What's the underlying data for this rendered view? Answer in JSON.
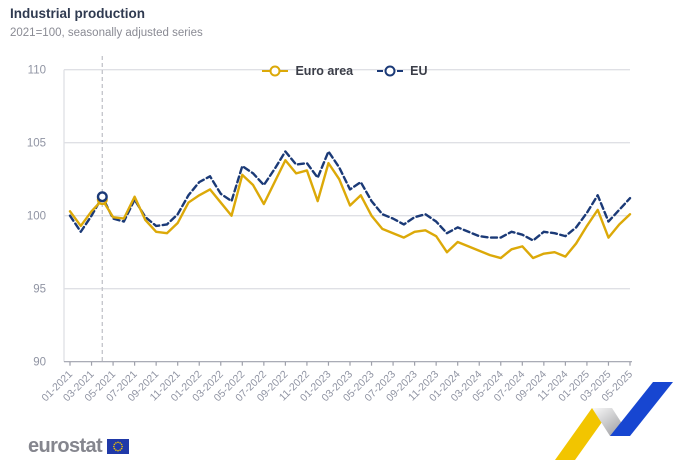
{
  "header": {
    "title": "Industrial production",
    "subtitle": "2021=100, seasonally adjusted series"
  },
  "footer": {
    "logo_text": "eurostat"
  },
  "colors": {
    "euro_area": "#DCA908",
    "eu": "#1B3A77",
    "grid": "#DFE0E5",
    "axis": "#9EA0AB",
    "tick_label": "#9094A3",
    "title": "#2F3A50",
    "subtitle": "#8A8B94",
    "legend_text": "#3B3E48",
    "reference_line": "#C6C7CD",
    "flag_blue": "#2039A8",
    "star_yellow": "#F2C500"
  },
  "chart_data": {
    "type": "line",
    "title": "Industrial production",
    "subtitle": "2021=100, seasonally adjusted series",
    "xlabel": "",
    "ylabel": "",
    "ylim": [
      90,
      110
    ],
    "yticks": [
      90,
      95,
      100,
      105,
      110
    ],
    "grid": "horizontal",
    "legend_position": "top-center",
    "x_tick_every": 2,
    "highlight": {
      "index": 3,
      "month": "04-2021"
    },
    "months": [
      "01-2021",
      "02-2021",
      "03-2021",
      "04-2021",
      "05-2021",
      "06-2021",
      "07-2021",
      "08-2021",
      "09-2021",
      "10-2021",
      "11-2021",
      "12-2021",
      "01-2022",
      "02-2022",
      "03-2022",
      "04-2022",
      "05-2022",
      "06-2022",
      "07-2022",
      "08-2022",
      "09-2022",
      "10-2022",
      "11-2022",
      "12-2022",
      "01-2023",
      "02-2023",
      "03-2023",
      "04-2023",
      "05-2023",
      "06-2023",
      "07-2023",
      "08-2023",
      "09-2023",
      "10-2023",
      "11-2023",
      "12-2023",
      "01-2024",
      "02-2024",
      "03-2024",
      "04-2024",
      "05-2024",
      "06-2024",
      "07-2024",
      "08-2024",
      "09-2024",
      "10-2024",
      "11-2024",
      "12-2024",
      "01-2025",
      "02-2025",
      "03-2025",
      "04-2025",
      "05-2025"
    ],
    "series": [
      {
        "name": "Euro area",
        "color": "#DCA908",
        "dash": null,
        "values": [
          100.3,
          99.3,
          100.3,
          101.1,
          99.9,
          99.8,
          101.3,
          99.7,
          98.9,
          98.8,
          99.5,
          100.9,
          101.4,
          101.8,
          100.9,
          100.0,
          102.8,
          102.1,
          100.8,
          102.3,
          103.8,
          102.9,
          103.1,
          101.0,
          103.6,
          102.5,
          100.7,
          101.4,
          100.0,
          99.1,
          98.8,
          98.5,
          98.9,
          99.0,
          98.6,
          97.5,
          98.2,
          97.9,
          97.6,
          97.3,
          97.1,
          97.7,
          97.9,
          97.1,
          97.4,
          97.5,
          97.2,
          98.1,
          99.3,
          100.4,
          98.5,
          99.4,
          100.1
        ]
      },
      {
        "name": "EU",
        "color": "#1B3A77",
        "dash": "6 3.5",
        "values": [
          100.0,
          98.9,
          100.0,
          101.3,
          99.8,
          99.6,
          101.1,
          99.9,
          99.3,
          99.4,
          100.1,
          101.4,
          102.3,
          102.7,
          101.5,
          101.0,
          103.4,
          102.9,
          102.1,
          103.2,
          104.4,
          103.5,
          103.6,
          102.6,
          104.4,
          103.3,
          101.8,
          102.3,
          101.0,
          100.1,
          99.8,
          99.4,
          99.9,
          100.1,
          99.6,
          98.8,
          99.2,
          98.9,
          98.6,
          98.5,
          98.5,
          98.9,
          98.7,
          98.3,
          98.9,
          98.8,
          98.6,
          99.2,
          100.2,
          101.4,
          99.6,
          100.4,
          101.2
        ]
      }
    ]
  }
}
